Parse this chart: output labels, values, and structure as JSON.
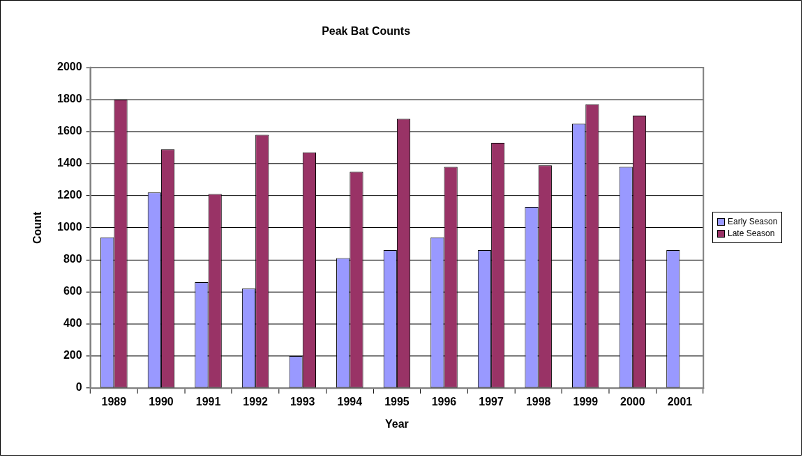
{
  "chart_data": {
    "type": "bar",
    "title": "Peak Bat Counts",
    "xlabel": "Year",
    "ylabel": "Count",
    "categories": [
      "1989",
      "1990",
      "1991",
      "1992",
      "1993",
      "1994",
      "1995",
      "1996",
      "1997",
      "1998",
      "1999",
      "2000",
      "2001"
    ],
    "series": [
      {
        "name": "Early Season",
        "color": "#9999ff",
        "values": [
          940,
          1220,
          660,
          620,
          200,
          810,
          860,
          940,
          860,
          1130,
          1650,
          1380,
          860
        ]
      },
      {
        "name": "Late Season",
        "color": "#993366",
        "values": [
          1800,
          1490,
          1210,
          1580,
          1470,
          1350,
          1680,
          1380,
          1530,
          1390,
          1770,
          1700,
          null
        ]
      }
    ],
    "ylim": [
      0,
      2000
    ],
    "yticks": [
      0,
      200,
      400,
      600,
      800,
      1000,
      1200,
      1400,
      1600,
      1800,
      2000
    ],
    "grid": "y",
    "legend": "right"
  }
}
